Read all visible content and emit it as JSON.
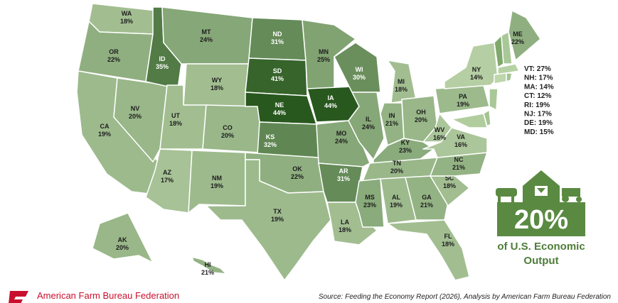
{
  "states": [
    {
      "abbr": "WA",
      "value": "18%"
    },
    {
      "abbr": "OR",
      "value": "22%"
    },
    {
      "abbr": "CA",
      "value": "19%"
    },
    {
      "abbr": "NV",
      "value": "20%"
    },
    {
      "abbr": "ID",
      "value": "35%"
    },
    {
      "abbr": "MT",
      "value": "24%"
    },
    {
      "abbr": "WY",
      "value": "18%"
    },
    {
      "abbr": "UT",
      "value": "18%"
    },
    {
      "abbr": "CO",
      "value": "20%"
    },
    {
      "abbr": "AZ",
      "value": "17%"
    },
    {
      "abbr": "NM",
      "value": "19%"
    },
    {
      "abbr": "ND",
      "value": "31%"
    },
    {
      "abbr": "SD",
      "value": "41%"
    },
    {
      "abbr": "NE",
      "value": "44%"
    },
    {
      "abbr": "KS",
      "value": "32%"
    },
    {
      "abbr": "OK",
      "value": "22%"
    },
    {
      "abbr": "TX",
      "value": "19%"
    },
    {
      "abbr": "MN",
      "value": "25%"
    },
    {
      "abbr": "IA",
      "value": "44%"
    },
    {
      "abbr": "MO",
      "value": "24%"
    },
    {
      "abbr": "AR",
      "value": "31%"
    },
    {
      "abbr": "LA",
      "value": "18%"
    },
    {
      "abbr": "WI",
      "value": "30%"
    },
    {
      "abbr": "IL",
      "value": "24%"
    },
    {
      "abbr": "MI",
      "value": "18%"
    },
    {
      "abbr": "IN",
      "value": "21%"
    },
    {
      "abbr": "OH",
      "value": "20%"
    },
    {
      "abbr": "KY",
      "value": "23%"
    },
    {
      "abbr": "TN",
      "value": "20%"
    },
    {
      "abbr": "MS",
      "value": "23%"
    },
    {
      "abbr": "AL",
      "value": "19%"
    },
    {
      "abbr": "GA",
      "value": "21%"
    },
    {
      "abbr": "FL",
      "value": "18%"
    },
    {
      "abbr": "SC",
      "value": "18%"
    },
    {
      "abbr": "NC",
      "value": "21%"
    },
    {
      "abbr": "VA",
      "value": "16%"
    },
    {
      "abbr": "WV",
      "value": "16%"
    },
    {
      "abbr": "PA",
      "value": "19%"
    },
    {
      "abbr": "NY",
      "value": "14%"
    },
    {
      "abbr": "ME",
      "value": "22%"
    },
    {
      "abbr": "AK",
      "value": "20%"
    },
    {
      "abbr": "HI",
      "value": "21%"
    }
  ],
  "small_states": [
    "VT: 27%",
    "NH: 17%",
    "MA: 14%",
    "CT: 12%",
    "RI: 19%",
    "NJ: 17%",
    "DE: 19%",
    "MD: 15%"
  ],
  "callout": {
    "value": "20%",
    "caption_line1": "of U.S. Economic",
    "caption_line2": "Output"
  },
  "footer": {
    "organization": "American Farm Bureau Federation",
    "source": "Source: Feeding the Economy Report (2026), Analysis by American Farm Bureau Federation"
  }
}
